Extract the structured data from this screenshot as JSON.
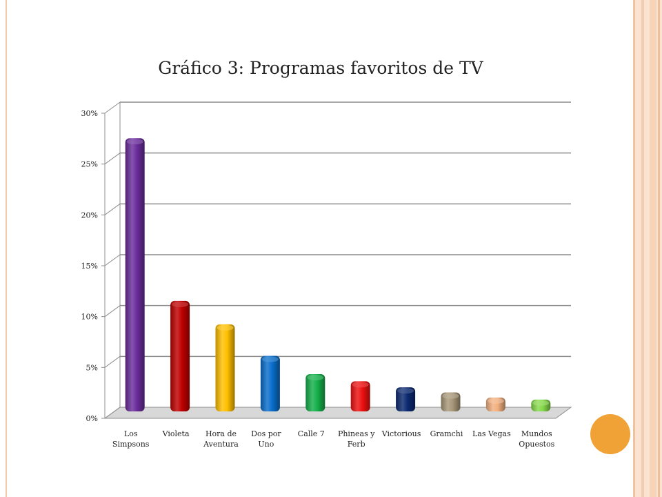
{
  "chart_data": {
    "type": "bar",
    "title": "Gráfico 3: Programas favoritos de TV",
    "xlabel": "",
    "ylabel": "",
    "ylim": [
      0,
      30
    ],
    "y_ticks": [
      "0%",
      "5%",
      "10%",
      "15%",
      "20%",
      "25%",
      "30%"
    ],
    "grid": true,
    "legend": "none",
    "categories": [
      [
        "Los",
        "Simpsons"
      ],
      [
        "Violeta"
      ],
      [
        "Hora de",
        "Aventura"
      ],
      [
        "Dos por",
        "Uno"
      ],
      [
        "Calle 7"
      ],
      [
        "Phineas y",
        "Ferb"
      ],
      [
        "Victorious"
      ],
      [
        "Gramchi"
      ],
      [
        "Las Vegas"
      ],
      [
        "Mundos",
        "Opuestos"
      ]
    ],
    "values": [
      27.0,
      11.0,
      8.7,
      5.6,
      3.8,
      3.1,
      2.5,
      2.0,
      1.5,
      1.3
    ],
    "colors": [
      "#6a2d9b",
      "#c00000",
      "#ffc000",
      "#0a6ecc",
      "#14b04a",
      "#ee1111",
      "#0c2a70",
      "#a8987a",
      "#f2b07e",
      "#86d94a"
    ]
  }
}
